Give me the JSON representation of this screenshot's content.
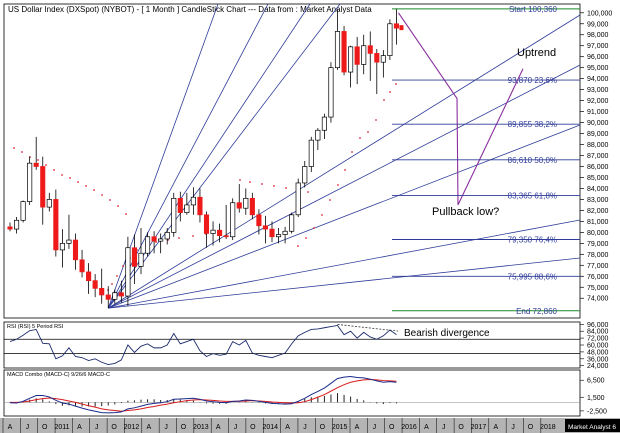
{
  "chart_data": [
    {
      "type": "candlestick",
      "title": "US Dollar Index (DXSpot) (NYBOT) -  [ 1 Month ] CandleStick Chart --- Data from : Market Analyst Data",
      "y_ticks": [
        74000,
        75000,
        76000,
        77000,
        78000,
        79000,
        80000,
        81000,
        82000,
        83000,
        84000,
        85000,
        86000,
        87000,
        88000,
        89000,
        90000,
        91000,
        92000,
        93000,
        94000,
        95000,
        96000,
        97000,
        98000,
        99000,
        100000
      ],
      "y_tick_labels": [
        "74,000",
        "75,000",
        "76,000",
        "77,000",
        "78,000",
        "79,000",
        "80,000",
        "81,000",
        "82,000",
        "83,000",
        "84,000",
        "85,000",
        "86,000",
        "87,000",
        "88,000",
        "89,000",
        "90,000",
        "91,000",
        "92,000",
        "93,000",
        "94,000",
        "95,000",
        "96,000",
        "97,000",
        "98,000",
        "99,000",
        "100,000"
      ],
      "ylim": [
        72200,
        100800
      ],
      "x_labels": [
        "A",
        "J",
        "O",
        "2011",
        "A",
        "J",
        "O",
        "2012",
        "A",
        "J",
        "O",
        "2013",
        "A",
        "J",
        "O",
        "2014",
        "A",
        "J",
        "O",
        "2015",
        "A",
        "J",
        "O",
        "2016",
        "A",
        "J",
        "O",
        "2017",
        "A",
        "J",
        "O",
        "2018",
        "Market Analyst 6"
      ],
      "candles": [
        [
          80.5,
          80.9,
          80.1,
          80.3
        ],
        [
          80.3,
          81.4,
          79.9,
          81.1
        ],
        [
          81.1,
          82.9,
          80.9,
          82.8
        ],
        [
          82.8,
          86.9,
          82.5,
          86.3
        ],
        [
          86.3,
          88.7,
          85.7,
          86.0
        ],
        [
          86.0,
          86.9,
          80.7,
          82.3
        ],
        [
          82.3,
          83.6,
          81.9,
          83.0
        ],
        [
          83.0,
          83.9,
          77.8,
          78.4
        ],
        [
          78.4,
          80.3,
          76.8,
          79.0
        ],
        [
          79.0,
          81.6,
          78.5,
          79.3
        ],
        [
          79.3,
          79.9,
          76.6,
          77.5
        ],
        [
          77.5,
          78.4,
          75.9,
          76.4
        ],
        [
          76.4,
          77.2,
          74.4,
          75.6
        ],
        [
          75.6,
          76.2,
          74.1,
          74.9
        ],
        [
          74.9,
          76.7,
          73.5,
          74.3
        ],
        [
          74.3,
          75.1,
          73.1,
          73.9
        ],
        [
          73.9,
          74.8,
          73.5,
          74.5
        ],
        [
          74.5,
          75.6,
          73.6,
          74.2
        ],
        [
          74.2,
          79.6,
          73.3,
          78.6
        ],
        [
          78.6,
          79.8,
          75.3,
          76.9
        ],
        [
          76.9,
          80.4,
          76.2,
          78.1
        ],
        [
          78.1,
          80.0,
          77.8,
          79.6
        ],
        [
          79.6,
          80.1,
          78.1,
          79.2
        ],
        [
          79.2,
          79.9,
          78.1,
          79.4
        ],
        [
          79.4,
          80.4,
          78.9,
          80.0
        ],
        [
          80.0,
          83.6,
          79.6,
          83.1
        ],
        [
          83.1,
          83.7,
          81.0,
          81.8
        ],
        [
          81.8,
          83.6,
          81.6,
          82.5
        ],
        [
          82.5,
          84.1,
          81.6,
          83.2
        ],
        [
          83.2,
          84.0,
          80.9,
          81.6
        ],
        [
          81.6,
          81.9,
          78.6,
          79.9
        ],
        [
          79.9,
          81.0,
          78.8,
          80.2
        ],
        [
          80.2,
          80.8,
          79.1,
          79.7
        ],
        [
          79.7,
          82.5,
          79.4,
          79.6
        ],
        [
          79.6,
          83.1,
          79.3,
          82.7
        ],
        [
          82.7,
          84.4,
          81.8,
          82.2
        ],
        [
          82.2,
          84.0,
          81.6,
          83.1
        ],
        [
          83.1,
          83.6,
          81.2,
          81.6
        ],
        [
          81.6,
          82.1,
          79.8,
          80.6
        ],
        [
          80.6,
          81.5,
          79.0,
          80.3
        ],
        [
          80.3,
          81.0,
          79.1,
          79.6
        ],
        [
          79.6,
          80.4,
          79.0,
          79.8
        ],
        [
          79.8,
          80.5,
          79.0,
          80.1
        ],
        [
          80.1,
          81.8,
          79.9,
          81.6
        ],
        [
          81.6,
          84.9,
          81.4,
          84.5
        ],
        [
          84.5,
          86.5,
          84.1,
          86.0
        ],
        [
          86.0,
          88.7,
          85.5,
          88.4
        ],
        [
          88.4,
          89.5,
          87.5,
          89.3
        ],
        [
          89.3,
          90.8,
          88.5,
          90.5
        ],
        [
          90.5,
          95.5,
          90.0,
          95.0
        ],
        [
          95.0,
          100.3,
          94.8,
          98.3
        ],
        [
          98.3,
          98.8,
          94.3,
          94.6
        ],
        [
          94.6,
          97.0,
          93.2,
          96.9
        ],
        [
          96.9,
          97.8,
          93.5,
          95.3
        ],
        [
          95.3,
          98.0,
          94.4,
          97.0
        ],
        [
          97.0,
          98.3,
          93.8,
          96.3
        ],
        [
          96.3,
          96.7,
          92.6,
          95.5
        ],
        [
          95.5,
          96.6,
          94.1,
          96.1
        ],
        [
          96.1,
          99.4,
          95.7,
          99.0
        ],
        [
          99.0,
          100.4,
          97.1,
          98.6
        ]
      ],
      "fib_levels": [
        {
          "label": "Start 100,360",
          "value": 100360
        },
        {
          "label": "93,870 23,6%",
          "value": 93870
        },
        {
          "label": "89,855 38,2%",
          "value": 89855
        },
        {
          "label": "86,610 50,0%",
          "value": 86610
        },
        {
          "label": "83,365 61,8%",
          "value": 83365
        },
        {
          "label": "79,350 76,4%",
          "value": 79350
        },
        {
          "label": "75,995 88,6%",
          "value": 75995
        },
        {
          "label": "End 72,860",
          "value": 72860
        }
      ],
      "projection": [
        [
          100.0
        ],
        [
          92.2
        ],
        [
          82.5
        ],
        [
          94.9
        ]
      ],
      "annotations": [
        "Uptrend",
        "Pullback low?"
      ],
      "colors": {
        "bull": "#ffffff",
        "bear": "#ee1a1a",
        "fan": "#2f3c99",
        "fib": "#2f3c99",
        "projection": "#8b2f9e",
        "sar": "#e0283c",
        "grid": "#000000"
      }
    },
    {
      "type": "line",
      "title": "RSI (RSI) 5 Period RSI",
      "y_ticks": [
        24000,
        36000,
        48000,
        60000,
        72000,
        84000,
        96000
      ],
      "y_tick_labels": [
        "24,000",
        "36,000",
        "48,000",
        "60,000",
        "72,000",
        "84,000",
        "96,000"
      ],
      "ylim": [
        20000,
        100000
      ],
      "ref_lines": [
        70,
        45
      ],
      "values": [
        66,
        70,
        77,
        85,
        87,
        63,
        62,
        36,
        41,
        55,
        40,
        38,
        33,
        36,
        30,
        26,
        28,
        34,
        60,
        47,
        58,
        62,
        55,
        55,
        60,
        80,
        62,
        66,
        70,
        50,
        40,
        45,
        42,
        44,
        66,
        60,
        68,
        46,
        42,
        40,
        38,
        42,
        46,
        62,
        76,
        82,
        87,
        88,
        90,
        92,
        94,
        78,
        84,
        72,
        82,
        74,
        70,
        76,
        86,
        78
      ],
      "annotation": "Bearish divergence"
    },
    {
      "type": "line",
      "title": "MACD Combo (MACD-C) 9/26/6 MACD-C",
      "y_ticks": [
        -2500,
        1500,
        6500
      ],
      "y_tick_labels": [
        "-2,500",
        "1,500",
        "6,500"
      ],
      "ylim": [
        -4000,
        9500
      ],
      "series": [
        {
          "name": "MACD",
          "values": [
            -0.1,
            -0.2,
            0.3,
            1.2,
            2.0,
            2.0,
            1.6,
            0.6,
            -0.2,
            -0.5,
            -1.1,
            -1.7,
            -2.2,
            -2.6,
            -3.0,
            -3.1,
            -3.0,
            -2.8,
            -1.9,
            -1.6,
            -1.1,
            -0.6,
            -0.3,
            -0.1,
            0.2,
            0.9,
            1.0,
            1.1,
            1.2,
            0.9,
            0.4,
            0.2,
            0.0,
            -0.1,
            0.3,
            0.4,
            0.7,
            0.6,
            0.3,
            0.0,
            -0.3,
            -0.4,
            -0.5,
            -0.4,
            0.3,
            1.2,
            2.3,
            3.2,
            4.2,
            5.6,
            7.0,
            7.4,
            7.6,
            7.3,
            7.2,
            6.8,
            6.3,
            5.9,
            6.1,
            5.9
          ]
        },
        {
          "name": "Signal",
          "values": [
            0.0,
            0.0,
            0.1,
            0.4,
            0.8,
            1.1,
            1.3,
            1.1,
            0.8,
            0.4,
            0.0,
            -0.5,
            -1.0,
            -1.4,
            -1.9,
            -2.2,
            -2.4,
            -2.6,
            -2.4,
            -2.2,
            -1.9,
            -1.5,
            -1.2,
            -0.8,
            -0.5,
            -0.1,
            0.2,
            0.5,
            0.7,
            0.8,
            0.7,
            0.6,
            0.4,
            0.3,
            0.3,
            0.3,
            0.4,
            0.5,
            0.4,
            0.3,
            0.1,
            0.0,
            -0.1,
            -0.2,
            -0.1,
            0.2,
            0.8,
            1.5,
            2.3,
            3.3,
            4.3,
            5.2,
            5.9,
            6.3,
            6.6,
            6.7,
            6.6,
            6.4,
            6.3,
            6.2
          ]
        }
      ]
    }
  ]
}
